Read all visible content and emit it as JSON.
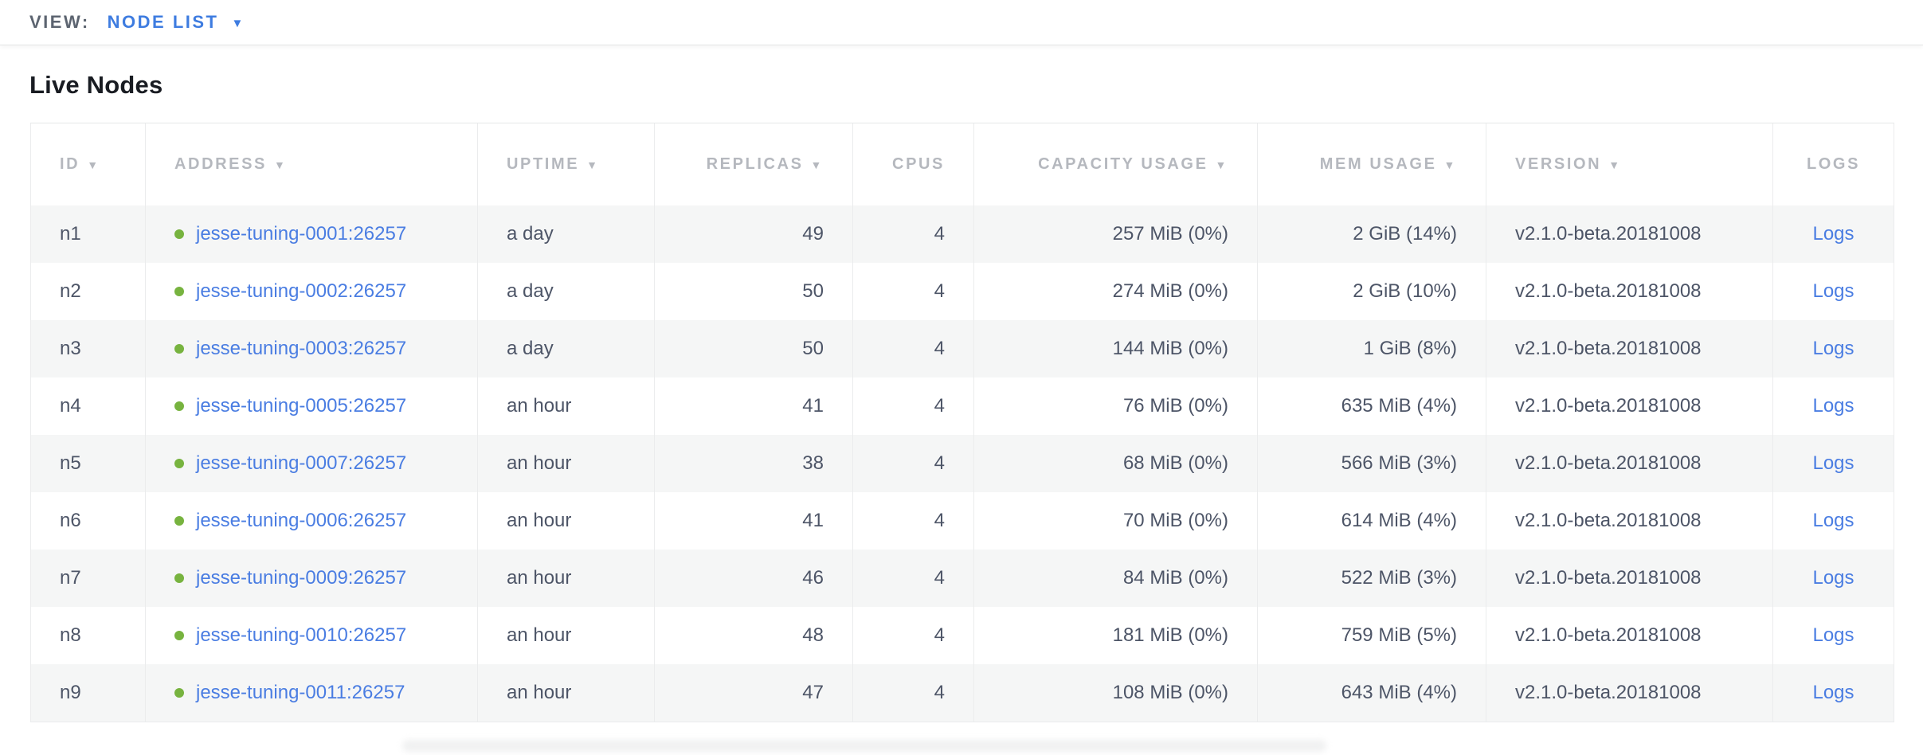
{
  "view_bar": {
    "label": "VIEW:",
    "selected": "NODE LIST",
    "dropdown_icon": "▼"
  },
  "page": {
    "title": "Live Nodes"
  },
  "table": {
    "sort_icon": "▼",
    "columns": [
      {
        "label": "ID",
        "sortable": true,
        "align": "left"
      },
      {
        "label": "ADDRESS",
        "sortable": true,
        "align": "left"
      },
      {
        "label": "UPTIME",
        "sortable": true,
        "align": "left"
      },
      {
        "label": "REPLICAS",
        "sortable": true,
        "align": "right"
      },
      {
        "label": "CPUS",
        "sortable": false,
        "align": "right"
      },
      {
        "label": "CAPACITY USAGE",
        "sortable": true,
        "align": "right"
      },
      {
        "label": "MEM USAGE",
        "sortable": true,
        "align": "right"
      },
      {
        "label": "VERSION",
        "sortable": true,
        "align": "left"
      },
      {
        "label": "LOGS",
        "sortable": false,
        "align": "center"
      }
    ],
    "rows": [
      {
        "id": "n1",
        "status": "live",
        "address": "jesse-tuning-0001:26257",
        "uptime": "a day",
        "replicas": "49",
        "cpus": "4",
        "capacity_usage": "257 MiB (0%)",
        "mem_usage": "2 GiB (14%)",
        "version": "v2.1.0-beta.20181008",
        "logs_label": "Logs"
      },
      {
        "id": "n2",
        "status": "live",
        "address": "jesse-tuning-0002:26257",
        "uptime": "a day",
        "replicas": "50",
        "cpus": "4",
        "capacity_usage": "274 MiB (0%)",
        "mem_usage": "2 GiB (10%)",
        "version": "v2.1.0-beta.20181008",
        "logs_label": "Logs"
      },
      {
        "id": "n3",
        "status": "live",
        "address": "jesse-tuning-0003:26257",
        "uptime": "a day",
        "replicas": "50",
        "cpus": "4",
        "capacity_usage": "144 MiB (0%)",
        "mem_usage": "1 GiB (8%)",
        "version": "v2.1.0-beta.20181008",
        "logs_label": "Logs"
      },
      {
        "id": "n4",
        "status": "live",
        "address": "jesse-tuning-0005:26257",
        "uptime": "an hour",
        "replicas": "41",
        "cpus": "4",
        "capacity_usage": "76 MiB (0%)",
        "mem_usage": "635 MiB (4%)",
        "version": "v2.1.0-beta.20181008",
        "logs_label": "Logs"
      },
      {
        "id": "n5",
        "status": "live",
        "address": "jesse-tuning-0007:26257",
        "uptime": "an hour",
        "replicas": "38",
        "cpus": "4",
        "capacity_usage": "68 MiB (0%)",
        "mem_usage": "566 MiB (3%)",
        "version": "v2.1.0-beta.20181008",
        "logs_label": "Logs"
      },
      {
        "id": "n6",
        "status": "live",
        "address": "jesse-tuning-0006:26257",
        "uptime": "an hour",
        "replicas": "41",
        "cpus": "4",
        "capacity_usage": "70 MiB (0%)",
        "mem_usage": "614 MiB (4%)",
        "version": "v2.1.0-beta.20181008",
        "logs_label": "Logs"
      },
      {
        "id": "n7",
        "status": "live",
        "address": "jesse-tuning-0009:26257",
        "uptime": "an hour",
        "replicas": "46",
        "cpus": "4",
        "capacity_usage": "84 MiB (0%)",
        "mem_usage": "522 MiB (3%)",
        "version": "v2.1.0-beta.20181008",
        "logs_label": "Logs"
      },
      {
        "id": "n8",
        "status": "live",
        "address": "jesse-tuning-0010:26257",
        "uptime": "an hour",
        "replicas": "48",
        "cpus": "4",
        "capacity_usage": "181 MiB (0%)",
        "mem_usage": "759 MiB (5%)",
        "version": "v2.1.0-beta.20181008",
        "logs_label": "Logs"
      },
      {
        "id": "n9",
        "status": "live",
        "address": "jesse-tuning-0011:26257",
        "uptime": "an hour",
        "replicas": "47",
        "cpus": "4",
        "capacity_usage": "108 MiB (0%)",
        "mem_usage": "643 MiB (4%)",
        "version": "v2.1.0-beta.20181008",
        "logs_label": "Logs"
      }
    ]
  },
  "colors": {
    "link_blue": "#4a7de2",
    "dropdown_blue": "#3e7ce0",
    "live_status_green": "#77b33f",
    "header_gray": "#b5b8be",
    "cell_text": "#4d5567",
    "alt_row_bg": "#f5f6f6",
    "column_border": "#ebeced",
    "title_text": "#191c22",
    "view_label_gray": "#5c6470"
  }
}
